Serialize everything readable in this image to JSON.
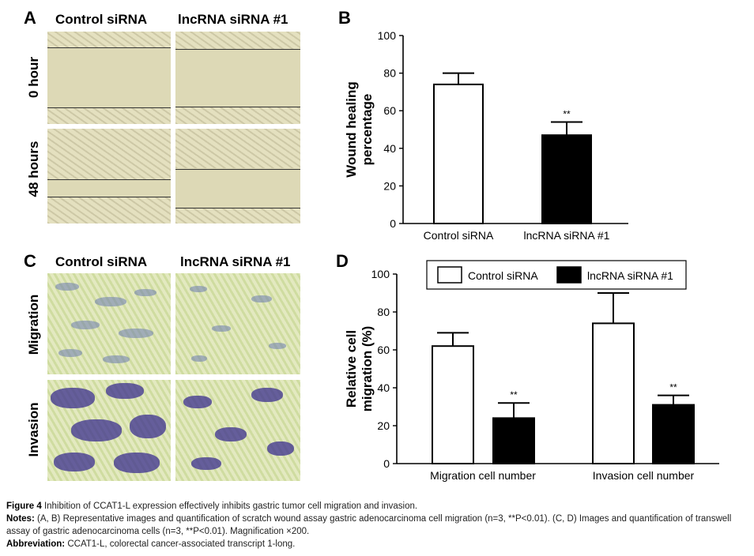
{
  "panels": {
    "A": {
      "letter": "A",
      "columns": [
        "Control siRNA",
        "lncRNA siRNA #1"
      ],
      "rows": [
        "0 hour",
        "48 hours"
      ]
    },
    "C": {
      "letter": "C",
      "columns": [
        "Control siRNA",
        "lncRNA siRNA #1"
      ],
      "rows": [
        "Migration",
        "Invasion"
      ]
    }
  },
  "chart_data": [
    {
      "panel": "B",
      "type": "bar",
      "categories": [
        "Control siRNA",
        "lncRNA siRNA #1"
      ],
      "values": [
        74,
        47
      ],
      "errors": [
        6,
        7
      ],
      "colors": [
        "#ffffff",
        "#000000"
      ],
      "annotations": [
        "",
        "**"
      ],
      "ylabel": "Wound healing percentage",
      "ylim": [
        0,
        100
      ],
      "yticks": [
        "0",
        "20",
        "40",
        "60",
        "80",
        "100"
      ]
    },
    {
      "panel": "D",
      "type": "bar",
      "categories": [
        "Migration cell number",
        "Invasion cell number"
      ],
      "series": [
        {
          "name": "Control siRNA",
          "color": "#ffffff",
          "values": [
            62,
            74
          ],
          "errors": [
            7,
            16
          ],
          "annotations": [
            "",
            ""
          ]
        },
        {
          "name": "lncRNA siRNA #1",
          "color": "#000000",
          "values": [
            24,
            31
          ],
          "errors": [
            8,
            5
          ],
          "annotations": [
            "**",
            "**"
          ]
        }
      ],
      "ylabel": "Relative cell migration (%)",
      "ylim": [
        0,
        100
      ],
      "yticks": [
        "0",
        "20",
        "40",
        "60",
        "80",
        "100"
      ],
      "legend": "top"
    }
  ],
  "caption": {
    "title_bold": "Figure 4",
    "title_text": "Inhibition of CCAT1-L expression effectively inhibits gastric tumor cell migration and invasion.",
    "notes_bold": "Notes:",
    "notes_text": "(A, B) Representative images and quantification of scratch wound assay gastric adenocarcinoma cell migration (n=3, **P<0.01). (C, D) Images and quantification of transwell assay of gastric adenocarcinoma cells (n=3, **P<0.01). Magnification ×200.",
    "abbrev_bold": "Abbreviation:",
    "abbrev_text": "CCAT1-L, colorectal cancer-associated transcript 1-long."
  }
}
